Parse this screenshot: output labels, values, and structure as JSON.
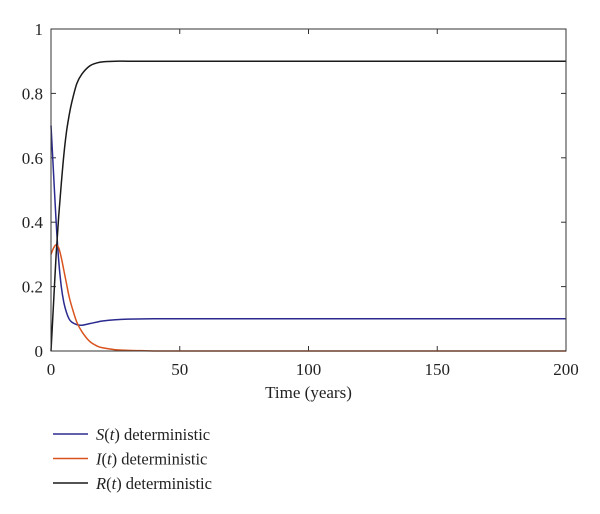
{
  "chart_data": {
    "type": "line",
    "title": "",
    "xlabel": "Time (years)",
    "ylabel": "",
    "xlim": [
      0,
      200
    ],
    "ylim": [
      0,
      1
    ],
    "xticks": [
      0,
      50,
      100,
      150,
      200
    ],
    "yticks": [
      0,
      0.2,
      0.4,
      0.6,
      0.8,
      1
    ],
    "xtick_labels": [
      "0",
      "50",
      "100",
      "150",
      "200"
    ],
    "ytick_labels": [
      "0",
      "0.2",
      "0.4",
      "0.6",
      "0.8",
      "1"
    ],
    "grid": false,
    "legend_position": "bottom-left (below plot)",
    "series": [
      {
        "name": "S(t) deterministic",
        "name_var": "S",
        "name_rest": " deterministic",
        "color": "#2b2b8f",
        "x": [
          0,
          1,
          2,
          3,
          4,
          5,
          6,
          7,
          8,
          10,
          12,
          15,
          18,
          20,
          25,
          30,
          40,
          50,
          75,
          100,
          150,
          200
        ],
        "y": [
          0.7,
          0.55,
          0.4,
          0.28,
          0.2,
          0.15,
          0.12,
          0.1,
          0.09,
          0.082,
          0.08,
          0.085,
          0.09,
          0.093,
          0.097,
          0.099,
          0.1,
          0.1,
          0.1,
          0.1,
          0.1,
          0.1
        ]
      },
      {
        "name": "I(t) deterministic",
        "name_var": "I",
        "name_rest": " deterministic",
        "color": "#d9531e",
        "x": [
          0,
          1,
          2,
          3,
          4,
          5,
          6,
          7,
          8,
          10,
          12,
          15,
          18,
          20,
          25,
          30,
          35,
          40,
          50,
          75,
          100,
          150,
          200
        ],
        "y": [
          0.3,
          0.32,
          0.33,
          0.32,
          0.29,
          0.25,
          0.21,
          0.17,
          0.14,
          0.09,
          0.06,
          0.03,
          0.015,
          0.01,
          0.004,
          0.002,
          0.001,
          0.0,
          0.0,
          0.0,
          0.0,
          0.0,
          0.0
        ]
      },
      {
        "name": "R(t) deterministic",
        "name_var": "R",
        "name_rest": " deterministic",
        "color": "#1a1a1a",
        "x": [
          0,
          1,
          2,
          3,
          4,
          5,
          6,
          7,
          8,
          10,
          12,
          15,
          18,
          20,
          25,
          30,
          40,
          50,
          75,
          100,
          150,
          200
        ],
        "y": [
          0.0,
          0.15,
          0.3,
          0.42,
          0.52,
          0.61,
          0.68,
          0.73,
          0.77,
          0.83,
          0.86,
          0.885,
          0.895,
          0.898,
          0.9,
          0.9,
          0.9,
          0.9,
          0.9,
          0.9,
          0.9,
          0.9
        ]
      }
    ]
  }
}
